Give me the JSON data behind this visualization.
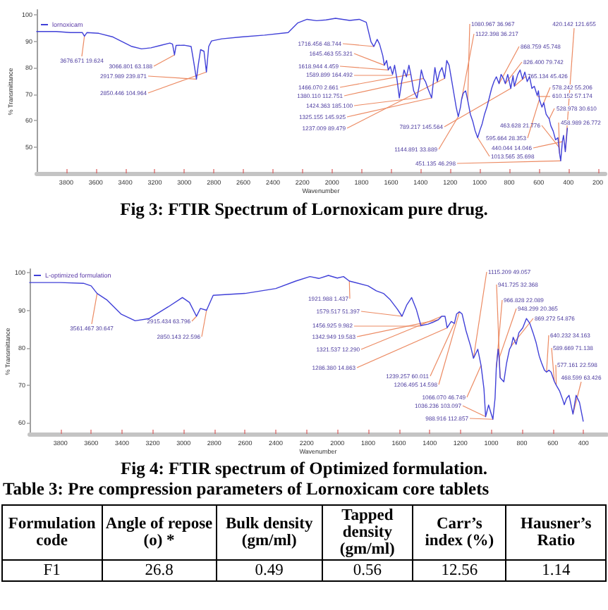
{
  "chart_data": [
    {
      "type": "line",
      "title": "Fig 3: FTIR Spectrum of Lornoxicam pure drug.",
      "xlabel": "Wavenumber",
      "ylabel": "% Transmittance",
      "legend": "top left",
      "marker": "none",
      "xlim": [
        4000,
        150
      ],
      "ylim": [
        40,
        102
      ],
      "xticks": [
        3800,
        3600,
        3400,
        3200,
        3000,
        2800,
        2600,
        2400,
        2200,
        2000,
        1800,
        1600,
        1400,
        1200,
        1000,
        800,
        600,
        400,
        200
      ],
      "yticks": [
        50,
        60,
        70,
        80,
        90,
        100
      ],
      "series": [
        {
          "name": "lornoxicam",
          "color": "#4040d8",
          "x": [
            4000,
            3867,
            3771,
            3691,
            3676.671,
            3659,
            3579,
            3483,
            3419,
            3355,
            3290,
            3226,
            3162,
            3098,
            3080,
            3066.801,
            3056,
            3002,
            2954,
            2938,
            2917.989,
            2906,
            2890,
            2867,
            2850.446,
            2835,
            2816,
            2746,
            2617,
            2457,
            2297,
            2233,
            2169,
            2104,
            2040,
            1976,
            1928,
            1880,
            1816,
            1768,
            1736,
            1716.456,
            1694,
            1678,
            1656,
            1645.463,
            1630,
            1618.944,
            1605,
            1589.899,
            1576,
            1560,
            1544,
            1528,
            1512,
            1496,
            1479,
            1466.07,
            1447,
            1424.363,
            1410,
            1395,
            1380.11,
            1367,
            1351,
            1325.155,
            1315,
            1303,
            1287,
            1271,
            1255,
            1237.009,
            1223,
            1207,
            1191,
            1175,
            1159,
            1144.891,
            1130,
            1122.398,
            1111,
            1095,
            1080.967,
            1063,
            1047,
            1031,
            1013.565,
            999,
            983,
            967,
            951,
            935,
            919,
            903,
            887,
            868.759,
            855,
            839,
            826.4,
            810,
            789.217,
            774,
            765.134,
            742,
            726,
            710,
            694,
            678,
            662,
            646,
            630,
            610.152,
            602,
            595.664,
            578.242,
            566,
            550,
            528.978,
            518,
            502,
            486,
            470,
            463.628,
            458.989,
            451.135,
            440.044,
            432,
            420.142,
            406
          ],
          "values": [
            93.8,
            93.8,
            93.4,
            93.4,
            92.0,
            93.4,
            93.1,
            91.7,
            89.9,
            88.1,
            87.2,
            87.6,
            88.5,
            89.4,
            89.0,
            84.9,
            88.5,
            88.6,
            88.1,
            82.8,
            75.7,
            81.0,
            86.9,
            86.3,
            78.4,
            88.1,
            90.2,
            91.0,
            91.7,
            92.4,
            93.4,
            97.0,
            98.4,
            97.9,
            98.2,
            98.8,
            98.4,
            98.0,
            98.4,
            97.3,
            89.9,
            88.1,
            90.8,
            89.0,
            84.6,
            81.0,
            82.8,
            79.2,
            80.5,
            77.5,
            81.0,
            75.7,
            68.6,
            74.8,
            79.2,
            76.6,
            81.0,
            77.5,
            71.3,
            68.6,
            73.0,
            79.2,
            76.0,
            74.8,
            72.2,
            68.6,
            74.0,
            80.1,
            74.8,
            78.4,
            80.1,
            76.0,
            82.8,
            81.0,
            75.7,
            70.4,
            65.1,
            61.5,
            65.1,
            68.0,
            70.4,
            71.3,
            67.7,
            62.4,
            59.8,
            56.2,
            53.5,
            56.2,
            58.8,
            62.4,
            65.1,
            68.6,
            72.2,
            74.8,
            76.6,
            74.0,
            77.5,
            76.0,
            74.0,
            77.5,
            72.2,
            77.0,
            73.0,
            77.5,
            79.2,
            75.7,
            78.4,
            74.8,
            76.6,
            72.2,
            73.0,
            69.5,
            71.3,
            68.0,
            65.1,
            66.8,
            62.4,
            60.6,
            58.0,
            56.0,
            52.7,
            53.5,
            50.0,
            47.5,
            44.7,
            52.0,
            54.4,
            48.2,
            57.1
          ]
        }
      ],
      "annotations": [
        {
          "text": "3676.671 19.624",
          "x": 3676.671,
          "y": 92.0
        },
        {
          "text": "3066.801 63.188",
          "x": 3066.801,
          "y": 84.9
        },
        {
          "text": "2917.989 239.871",
          "x": 2917.989,
          "y": 75.7
        },
        {
          "text": "2850.446 104.964",
          "x": 2850.446,
          "y": 78.4
        },
        {
          "text": "1716.456 48.744",
          "x": 1716.456,
          "y": 88.1
        },
        {
          "text": "1645.463 55.321",
          "x": 1645.463,
          "y": 81.0
        },
        {
          "text": "1618.944 4.459",
          "x": 1618.944,
          "y": 79.2
        },
        {
          "text": "1589.899 164.492",
          "x": 1589.899,
          "y": 77.5
        },
        {
          "text": "1466.070 2.661",
          "x": 1466.07,
          "y": 77.5
        },
        {
          "text": "1380.110 112.751",
          "x": 1380.11,
          "y": 76.0
        },
        {
          "text": "1424.363 185.100",
          "x": 1424.363,
          "y": 68.6
        },
        {
          "text": "1325.155 145.925",
          "x": 1325.155,
          "y": 68.6
        },
        {
          "text": "1237.009 89.479",
          "x": 1237.009,
          "y": 76.0
        },
        {
          "text": "1144.891 33.889",
          "x": 1144.891,
          "y": 61.5
        },
        {
          "text": "451.135 46.298",
          "x": 451.135,
          "y": 44.7
        },
        {
          "text": "1080.967 36.967",
          "x": 1080.967,
          "y": 67.7
        },
        {
          "text": "1122.398 36.217",
          "x": 1122.398,
          "y": 68.0
        },
        {
          "text": "789.217 145.564",
          "x": 789.217,
          "y": 72.2
        },
        {
          "text": "868.759 45.748",
          "x": 868.759,
          "y": 74.0
        },
        {
          "text": "826.400 79.742",
          "x": 826.4,
          "y": 74.0
        },
        {
          "text": "765.134 45.426",
          "x": 765.134,
          "y": 73.0
        },
        {
          "text": "578.242 55.206",
          "x": 578.242,
          "y": 65.1
        },
        {
          "text": "610.152 57.174",
          "x": 610.152,
          "y": 69.5
        },
        {
          "text": "528.978 30.610",
          "x": 528.978,
          "y": 60.6
        },
        {
          "text": "463.628 21.776",
          "x": 463.628,
          "y": 50.0
        },
        {
          "text": "458.989 26.772",
          "x": 458.989,
          "y": 47.5
        },
        {
          "text": "595.664 28.353",
          "x": 595.664,
          "y": 68.0
        },
        {
          "text": "440.044 14.046",
          "x": 440.044,
          "y": 52.0
        },
        {
          "text": "1013.565 35.698",
          "x": 1013.565,
          "y": 53.5
        },
        {
          "text": "420.142 121.655",
          "x": 420.142,
          "y": 48.2
        }
      ]
    },
    {
      "type": "line",
      "title": "Fig 4: FTIR spectrum of Optimized formulation.",
      "xlabel": "Wavenumber",
      "ylabel": "% Transmittance",
      "legend": "top left",
      "marker": "none",
      "xlim": [
        4000,
        250
      ],
      "ylim": [
        57,
        101
      ],
      "xticks": [
        3800,
        3600,
        3400,
        3200,
        3000,
        2800,
        2600,
        2400,
        2200,
        2000,
        1800,
        1600,
        1400,
        1200,
        1000,
        800,
        600,
        400
      ],
      "yticks": [
        60,
        70,
        80,
        90,
        100
      ],
      "series": [
        {
          "name": "L-optimized formulation",
          "color": "#4040d8",
          "x": [
            4000,
            3800,
            3650,
            3600,
            3561.467,
            3499,
            3406,
            3314,
            3222,
            3100,
            3007,
            2961,
            2915.434,
            2890,
            2850.143,
            2807,
            2600,
            2400,
            2270,
            2178,
            2120,
            2058,
            2000,
            1960,
            1921.988,
            1800,
            1747,
            1700,
            1656,
            1610,
            1579.517,
            1548,
            1517,
            1487,
            1456.925,
            1410,
            1379,
            1342.949,
            1321.537,
            1300,
            1286.38,
            1260,
            1239.257,
            1225,
            1206.495,
            1189,
            1164,
            1133,
            1115.209,
            1087,
            1066.07,
            1047,
            1036.236,
            1017,
            1001,
            988.916,
            975,
            966.828,
            955,
            948.299,
            941.725,
            918,
            900,
            881,
            869.272,
            857,
            838,
            820,
            795,
            771,
            749,
            728,
            709,
            688,
            673,
            654,
            640.232,
            625,
            611,
            589.669,
            577.161,
            556,
            534,
            525,
            510,
            494,
            468.599,
            448,
            426,
            402
          ],
          "values": [
            97.4,
            97.4,
            97.2,
            96.5,
            94.5,
            92.8,
            89.0,
            87.2,
            87.8,
            90.9,
            93.4,
            92.1,
            88.4,
            90.5,
            90.0,
            94.0,
            94.5,
            95.8,
            97.8,
            99.0,
            98.5,
            99.3,
            98.6,
            99.0,
            97.8,
            96.5,
            95.2,
            94.5,
            92.8,
            90.3,
            88.4,
            91.5,
            93.4,
            90.3,
            85.9,
            86.3,
            86.8,
            87.5,
            88.4,
            88.4,
            85.3,
            87.0,
            86.5,
            89.0,
            89.6,
            89.0,
            84.6,
            80.3,
            77.2,
            79.6,
            75.3,
            69.0,
            61.6,
            64.7,
            62.5,
            60.9,
            66.5,
            74.7,
            79.6,
            77.2,
            72.0,
            70.9,
            75.9,
            79.6,
            80.5,
            82.8,
            80.9,
            84.0,
            85.3,
            87.8,
            86.5,
            84.0,
            81.5,
            77.8,
            76.0,
            74.0,
            73.5,
            74.0,
            73.5,
            71.0,
            70.0,
            68.5,
            66.0,
            64.8,
            66.5,
            67.3,
            62.3,
            67.3,
            65.4,
            60.4
          ]
        }
      ],
      "annotations": [
        {
          "text": "3561.467 30.647",
          "x": 3561.467,
          "y": 94.5
        },
        {
          "text": "2915.434 63.796",
          "x": 2915.434,
          "y": 88.4
        },
        {
          "text": "2850.143 22.596",
          "x": 2850.143,
          "y": 90.0
        },
        {
          "text": "1921.988 1.437",
          "x": 1921.988,
          "y": 97.8
        },
        {
          "text": "1579.517 51.397",
          "x": 1579.517,
          "y": 88.4
        },
        {
          "text": "1456.925 9.982",
          "x": 1456.925,
          "y": 85.9
        },
        {
          "text": "1342.949 19.583",
          "x": 1342.949,
          "y": 87.5
        },
        {
          "text": "1321.537 12.290",
          "x": 1321.537,
          "y": 88.4
        },
        {
          "text": "1286.380 14.863",
          "x": 1286.38,
          "y": 85.3
        },
        {
          "text": "1239.257 60.011",
          "x": 1239.257,
          "y": 86.5
        },
        {
          "text": "1206.495 14.598",
          "x": 1206.495,
          "y": 89.6
        },
        {
          "text": "1066.070 46.749",
          "x": 1066.07,
          "y": 75.3
        },
        {
          "text": "1036.236 103.097",
          "x": 1036.236,
          "y": 61.6
        },
        {
          "text": "988.916 112.857",
          "x": 988.916,
          "y": 60.9
        },
        {
          "text": "1115.209 49.057",
          "x": 1115.209,
          "y": 77.2
        },
        {
          "text": "941.725 32.368",
          "x": 941.725,
          "y": 72.0
        },
        {
          "text": "966.828 22.089",
          "x": 966.828,
          "y": 74.7
        },
        {
          "text": "948.299 20.365",
          "x": 948.299,
          "y": 77.2
        },
        {
          "text": "869.272 54.876",
          "x": 869.272,
          "y": 80.5
        },
        {
          "text": "640.232 34.163",
          "x": 640.232,
          "y": 73.5
        },
        {
          "text": "589.669 71.138",
          "x": 589.669,
          "y": 71.0
        },
        {
          "text": "577.161 22.598",
          "x": 577.161,
          "y": 70.0
        },
        {
          "text": "468.599 63.426",
          "x": 468.599,
          "y": 62.3
        }
      ]
    },
    {
      "type": "other",
      "title": "Table 3: Pre compression parameters of Lornoxicam core tablets",
      "categories": [
        "Formulation code",
        "Angle of repose (o) *",
        "Bulk density (gm/ml)",
        "Tapped density (gm/ml)",
        "Carr’s index (%)",
        "Hausner’s Ratio"
      ],
      "annotations": [
        "F1",
        "26.8",
        "0.49",
        "0.56",
        "12.56",
        "1.14"
      ]
    }
  ]
}
